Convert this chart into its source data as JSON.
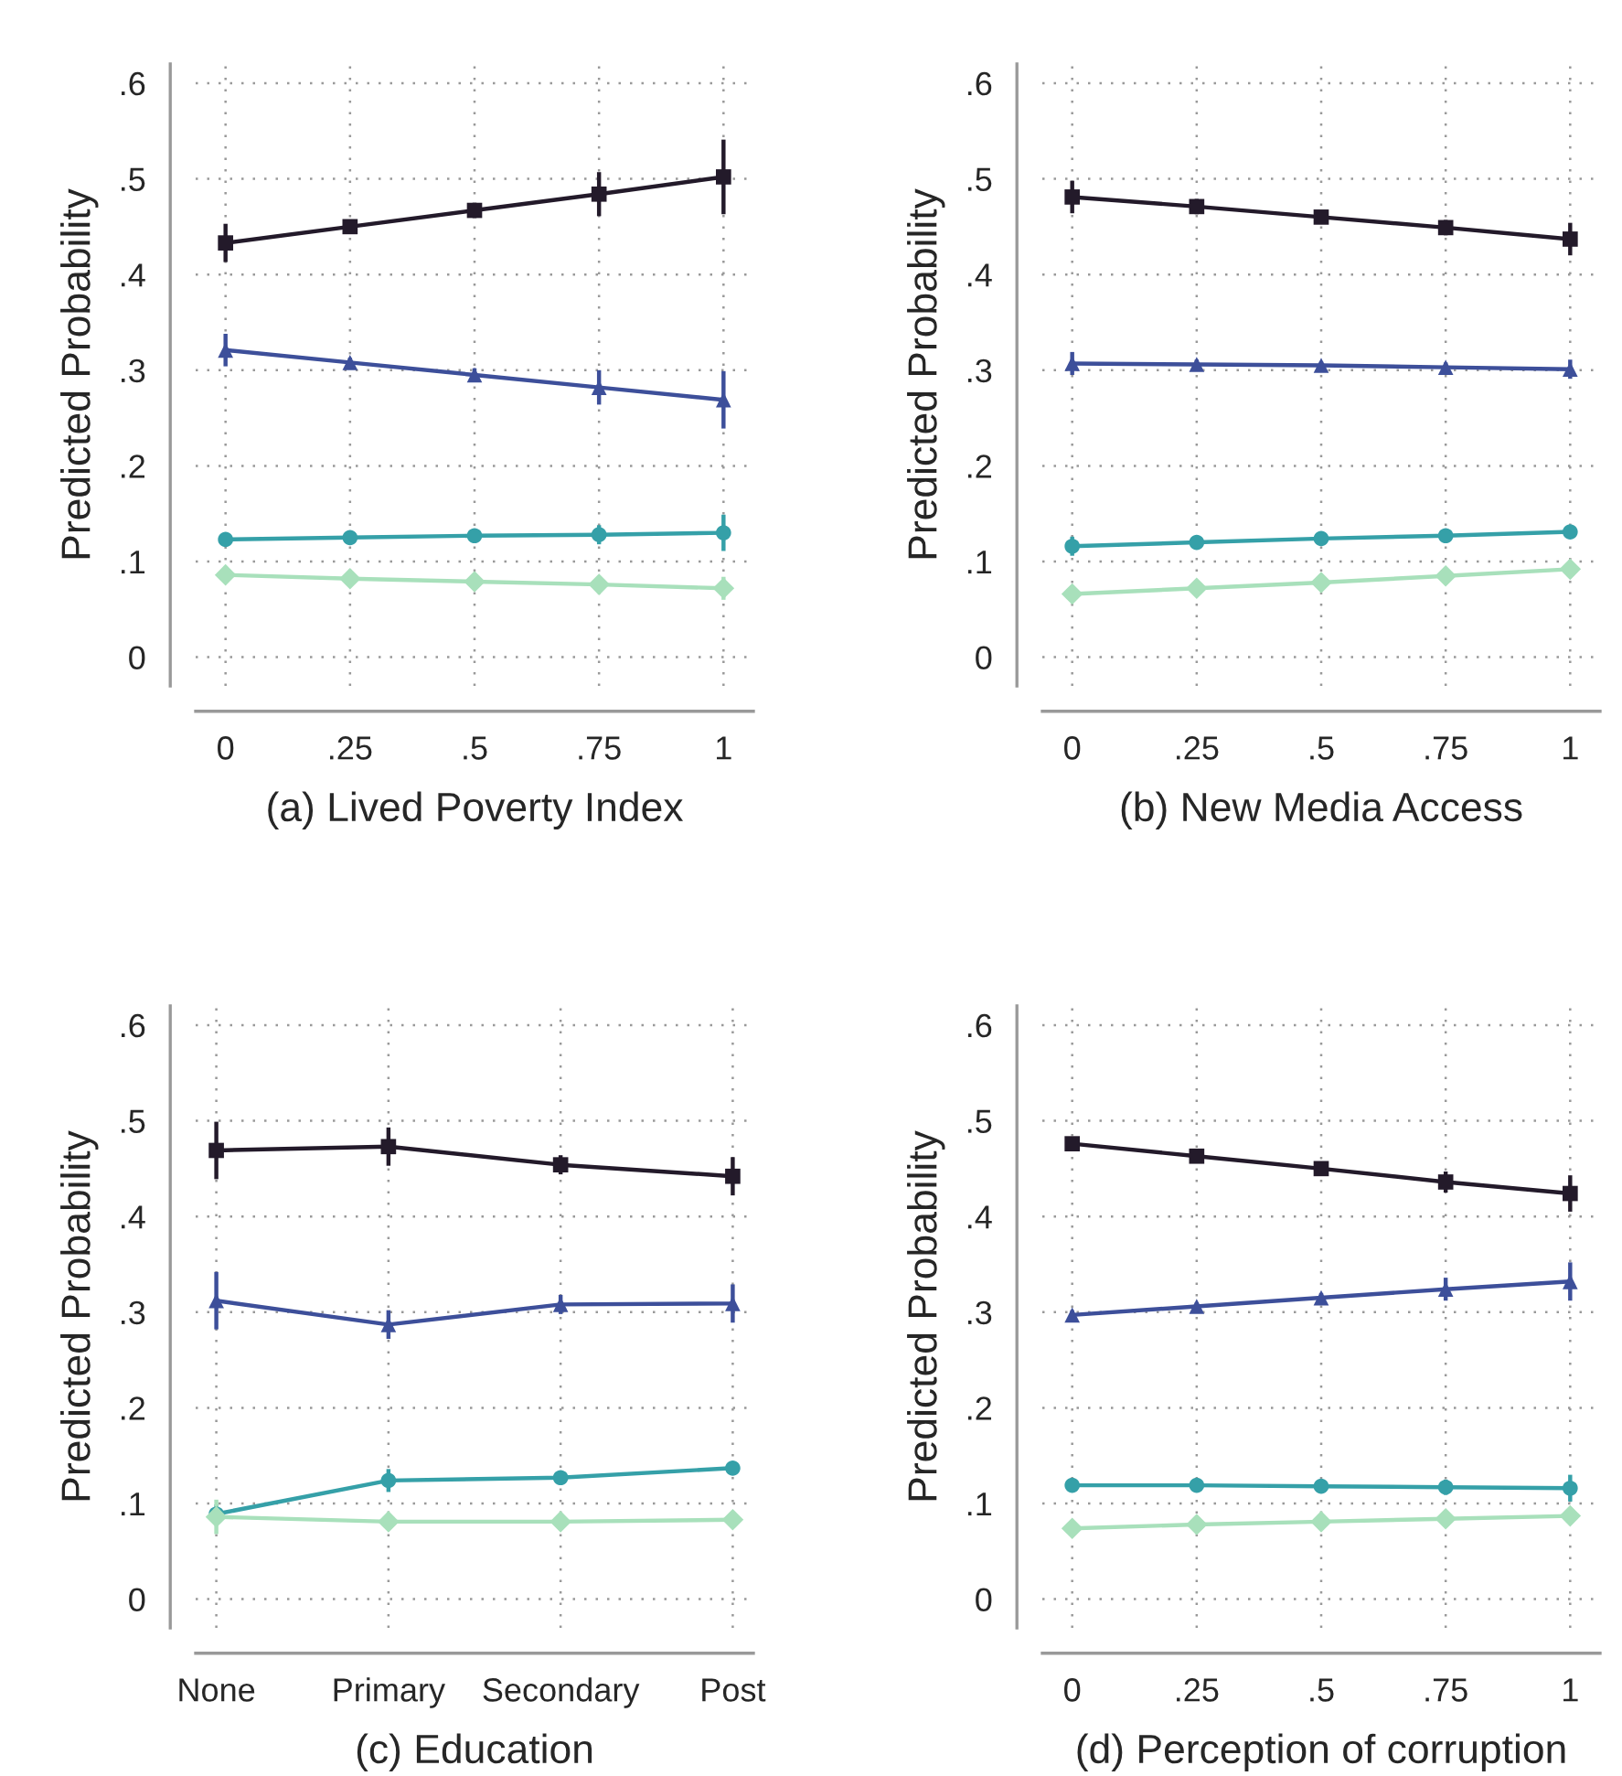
{
  "chart_data": [
    {
      "type": "line",
      "xlabel": "(a) Lived Poverty Index",
      "ylabel": "Predicted Probability",
      "x": [
        0,
        0.25,
        0.5,
        0.75,
        1
      ],
      "xlim": [
        -0.06,
        1.06
      ],
      "xticks": [
        0,
        {
          "value": 0.25,
          "label": ".25"
        },
        {
          "value": 0.5,
          "label": ".5"
        },
        {
          "value": 0.75,
          "label": ".75"
        },
        1
      ],
      "ylim": [
        -0.03,
        0.62
      ],
      "yticks": [
        0,
        {
          "value": 0.1,
          "label": ".1"
        },
        {
          "value": 0.2,
          "label": ".2"
        },
        {
          "value": 0.3,
          "label": ".3"
        },
        {
          "value": 0.4,
          "label": ".4"
        },
        {
          "value": 0.5,
          "label": ".5"
        },
        {
          "value": 0.6,
          "label": ".6"
        }
      ],
      "grid": true,
      "line_style": "solid",
      "series": [
        {
          "color": "#231a2a",
          "marker": "square",
          "values": [
            0.433,
            0.45,
            0.467,
            0.484,
            0.502
          ],
          "errors": [
            0.02,
            0.005,
            0.008,
            0.023,
            0.039
          ]
        },
        {
          "color": "#3d4f9a",
          "marker": "triangle",
          "values": [
            0.321,
            0.308,
            0.295,
            0.282,
            0.269
          ],
          "errors": [
            0.017,
            0.005,
            0.007,
            0.018,
            0.03
          ]
        },
        {
          "color": "#35a0a8",
          "marker": "circle",
          "values": [
            0.123,
            0.125,
            0.127,
            0.128,
            0.13
          ],
          "errors": [
            0.006,
            0.003,
            0.004,
            0.01,
            0.019
          ]
        },
        {
          "color": "#a8e0bb",
          "marker": "diamond",
          "values": [
            0.086,
            0.082,
            0.079,
            0.076,
            0.072
          ],
          "errors": [
            0.005,
            0.003,
            0.004,
            0.007,
            0.012
          ]
        }
      ]
    },
    {
      "type": "line",
      "xlabel": "(b) New Media Access",
      "ylabel": "Predicted Probability",
      "x": [
        0,
        0.25,
        0.5,
        0.75,
        1
      ],
      "xlim": [
        -0.06,
        1.06
      ],
      "xticks": [
        0,
        {
          "value": 0.25,
          "label": ".25"
        },
        {
          "value": 0.5,
          "label": ".5"
        },
        {
          "value": 0.75,
          "label": ".75"
        },
        1
      ],
      "ylim": [
        -0.03,
        0.62
      ],
      "yticks": [
        0,
        {
          "value": 0.1,
          "label": ".1"
        },
        {
          "value": 0.2,
          "label": ".2"
        },
        {
          "value": 0.3,
          "label": ".3"
        },
        {
          "value": 0.4,
          "label": ".4"
        },
        {
          "value": 0.5,
          "label": ".5"
        },
        {
          "value": 0.6,
          "label": ".6"
        }
      ],
      "grid": true,
      "line_style": "solid",
      "series": [
        {
          "color": "#231a2a",
          "marker": "square",
          "values": [
            0.481,
            0.471,
            0.46,
            0.449,
            0.437
          ],
          "errors": [
            0.017,
            0.008,
            0.005,
            0.008,
            0.017
          ]
        },
        {
          "color": "#3d4f9a",
          "marker": "triangle",
          "values": [
            0.307,
            0.306,
            0.305,
            0.303,
            0.301
          ],
          "errors": [
            0.012,
            0.005,
            0.004,
            0.005,
            0.01
          ]
        },
        {
          "color": "#35a0a8",
          "marker": "circle",
          "values": [
            0.116,
            0.12,
            0.124,
            0.127,
            0.131
          ],
          "errors": [
            0.01,
            0.005,
            0.003,
            0.004,
            0.006
          ]
        },
        {
          "color": "#a8e0bb",
          "marker": "diamond",
          "values": [
            0.066,
            0.072,
            0.078,
            0.085,
            0.092
          ],
          "errors": [
            0.005,
            0.004,
            0.003,
            0.004,
            0.004
          ]
        }
      ]
    },
    {
      "type": "line",
      "xlabel": "(c) Education",
      "ylabel": "Predicted Probability",
      "categories": [
        "None",
        "Primary",
        "Secondary",
        "Post"
      ],
      "ylim": [
        -0.03,
        0.62
      ],
      "yticks": [
        0,
        {
          "value": 0.1,
          "label": ".1"
        },
        {
          "value": 0.2,
          "label": ".2"
        },
        {
          "value": 0.3,
          "label": ".3"
        },
        {
          "value": 0.4,
          "label": ".4"
        },
        {
          "value": 0.5,
          "label": ".5"
        },
        {
          "value": 0.6,
          "label": ".6"
        }
      ],
      "grid": true,
      "line_style": "solid",
      "series": [
        {
          "color": "#231a2a",
          "marker": "square",
          "values": [
            0.469,
            0.473,
            0.454,
            0.442
          ],
          "errors": [
            0.03,
            0.02,
            0.01,
            0.02
          ]
        },
        {
          "color": "#3d4f9a",
          "marker": "triangle",
          "values": [
            0.312,
            0.287,
            0.308,
            0.309
          ],
          "errors": [
            0.03,
            0.015,
            0.01,
            0.02
          ]
        },
        {
          "color": "#35a0a8",
          "marker": "circle",
          "values": [
            0.089,
            0.124,
            0.127,
            0.137
          ],
          "errors": [
            0.01,
            0.012,
            0.004,
            0.007
          ]
        },
        {
          "color": "#a8e0bb",
          "marker": "diamond",
          "values": [
            0.086,
            0.081,
            0.081,
            0.083
          ],
          "errors": [
            0.018,
            0.004,
            0.003,
            0.003
          ]
        }
      ]
    },
    {
      "type": "line",
      "xlabel": "(d) Perception of corruption",
      "ylabel": "Predicted Probability",
      "x": [
        0,
        0.25,
        0.5,
        0.75,
        1
      ],
      "xlim": [
        -0.06,
        1.06
      ],
      "xticks": [
        0,
        {
          "value": 0.25,
          "label": ".25"
        },
        {
          "value": 0.5,
          "label": ".5"
        },
        {
          "value": 0.75,
          "label": ".75"
        },
        1
      ],
      "ylim": [
        -0.03,
        0.62
      ],
      "yticks": [
        0,
        {
          "value": 0.1,
          "label": ".1"
        },
        {
          "value": 0.2,
          "label": ".2"
        },
        {
          "value": 0.3,
          "label": ".3"
        },
        {
          "value": 0.4,
          "label": ".4"
        },
        {
          "value": 0.5,
          "label": ".5"
        },
        {
          "value": 0.6,
          "label": ".6"
        }
      ],
      "grid": true,
      "line_style": "solid",
      "series": [
        {
          "color": "#231a2a",
          "marker": "square",
          "values": [
            0.476,
            0.463,
            0.45,
            0.436,
            0.424
          ],
          "errors": [
            0.007,
            0.004,
            0.004,
            0.011,
            0.019
          ]
        },
        {
          "color": "#3d4f9a",
          "marker": "triangle",
          "values": [
            0.297,
            0.306,
            0.315,
            0.324,
            0.332
          ],
          "errors": [
            0.005,
            0.004,
            0.005,
            0.012,
            0.02
          ]
        },
        {
          "color": "#35a0a8",
          "marker": "circle",
          "values": [
            0.119,
            0.119,
            0.118,
            0.117,
            0.116
          ],
          "errors": [
            0.003,
            0.003,
            0.004,
            0.008,
            0.014
          ]
        },
        {
          "color": "#a8e0bb",
          "marker": "diamond",
          "values": [
            0.074,
            0.078,
            0.081,
            0.084,
            0.087
          ],
          "errors": [
            0.003,
            0.003,
            0.004,
            0.006,
            0.009
          ]
        }
      ]
    }
  ]
}
